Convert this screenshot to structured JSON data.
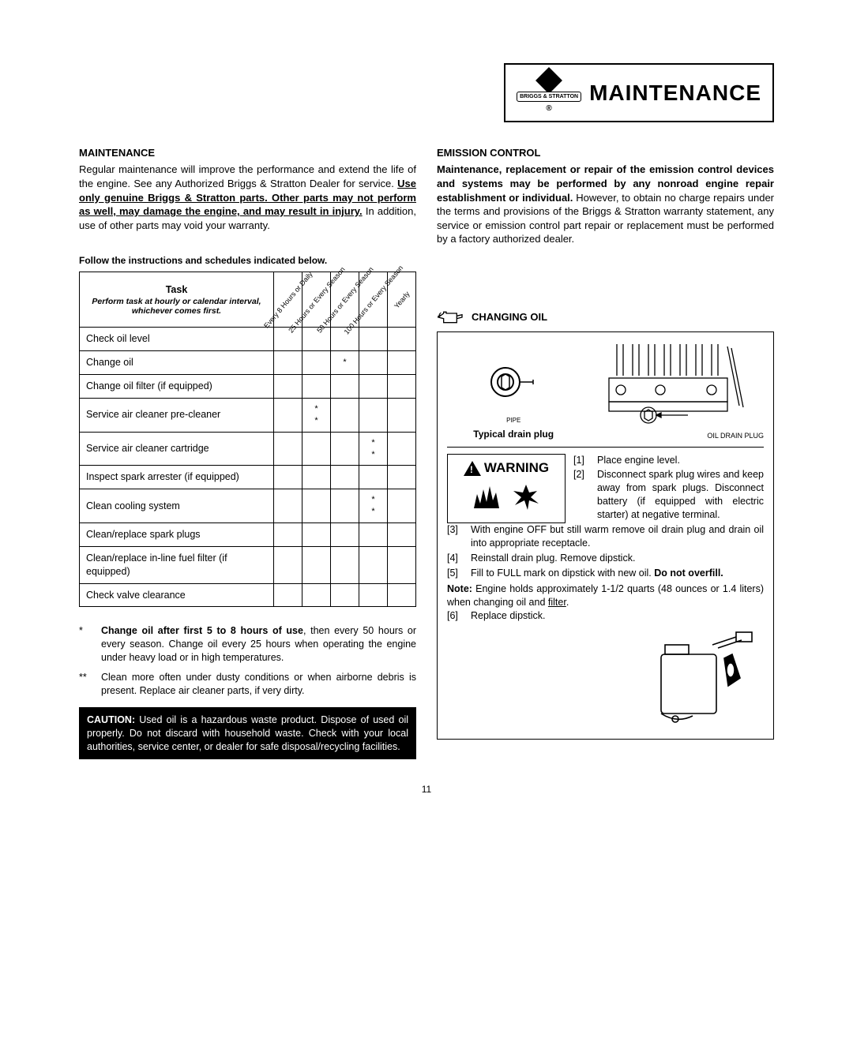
{
  "header": {
    "brand": "BRIGGS & STRATTON",
    "reg": "®",
    "title": "MAINTENANCE"
  },
  "left": {
    "maint_h": "MAINTENANCE",
    "maint_p1a": "Regular maintenance will improve the performance and extend the life of the engine. See any Authorized Briggs & Stratton Dealer for service. ",
    "maint_p1b": "Use only genuine Briggs & Stratton parts. Other parts may not perform as well, may damage the engine, and may result in injury.",
    "maint_p1c": " In addition, use of other parts may void your warranty.",
    "follow": "Follow the instructions and schedules indicated below.",
    "task_title": "Task",
    "task_sub": "Perform task at hourly or calendar interval, whichever comes first.",
    "cols": [
      "Every 8 Hours or Daily",
      "25 Hours or Every Season",
      "50 Hours or Every Season",
      "100 Hours or Every Season",
      "Yearly"
    ],
    "rows": [
      {
        "task": "Check oil level",
        "marks": [
          "",
          "",
          "",
          "",
          ""
        ]
      },
      {
        "task": "Change oil",
        "marks": [
          "",
          "",
          "*",
          "",
          ""
        ]
      },
      {
        "task": "Change oil filter (if equipped)",
        "marks": [
          "",
          "",
          "",
          "",
          ""
        ]
      },
      {
        "task": "Service air cleaner pre-cleaner",
        "marks": [
          "",
          "* *",
          "",
          "",
          ""
        ]
      },
      {
        "task": "Service air cleaner cartridge",
        "marks": [
          "",
          "",
          "",
          "* *",
          ""
        ]
      },
      {
        "task": "Inspect spark arrester (if equipped)",
        "marks": [
          "",
          "",
          "",
          "",
          ""
        ]
      },
      {
        "task": "Clean cooling system",
        "marks": [
          "",
          "",
          "",
          "* *",
          ""
        ]
      },
      {
        "task": "Clean/replace spark plugs",
        "marks": [
          "",
          "",
          "",
          "",
          ""
        ]
      },
      {
        "task": "Clean/replace in-line fuel filter (if equipped)",
        "marks": [
          "",
          "",
          "",
          "",
          ""
        ]
      },
      {
        "task": "Check valve clearance",
        "marks": [
          "",
          "",
          "",
          "",
          ""
        ]
      }
    ],
    "note1_sym": "*",
    "note1a": "Change oil after first 5 to 8 hours of use",
    "note1b": ", then every 50 hours or every season. Change oil every 25 hours when operating the engine under heavy load or in high temperatures.",
    "note2_sym": "**",
    "note2": "Clean more often under dusty conditions or when airborne debris is present. Replace air cleaner parts, if very dirty.",
    "caution_b": "CAUTION:",
    "caution": " Used oil is a hazardous waste product. Dispose of used oil properly. Do not discard with household waste. Check with your local authorities, service center, or dealer for safe disposal/recycling facilities."
  },
  "right": {
    "ec_h": "EMISSION CONTROL",
    "ec_bold": "Maintenance, replacement or repair of the emission control devices and systems may be performed by any nonroad engine repair establishment or individual.",
    "ec_rest": " However, to obtain no charge repairs under the terms and provisions of the Briggs & Stratton warranty statement, any service or emission control part repair or replacement must be performed by a factory authorized dealer.",
    "oil_h": "CHANGING OIL",
    "pipe": "PIPE",
    "typical": "Typical drain plug",
    "drain_lbl": "OIL DRAIN PLUG",
    "warn": "WARNING",
    "steps12": [
      {
        "n": "[1]",
        "t": "Place engine level."
      },
      {
        "n": "[2]",
        "t": "Disconnect spark plug wires and keep away from spark plugs. Disconnect battery (if equipped with electric starter) at negative terminal."
      }
    ],
    "steps_after": [
      {
        "n": "[3]",
        "t": "With engine OFF but still warm remove oil drain plug and drain oil into appropriate receptacle."
      },
      {
        "n": "[4]",
        "t": "Reinstall drain plug. Remove dipstick."
      },
      {
        "n": "[5]",
        "ta": "Fill to FULL mark on dipstick with new oil. ",
        "tb": "Do not overfill."
      }
    ],
    "note_b": "Note:",
    "note_t1": " Engine holds approximately 1-1/2 quarts (48 ounces or 1.4 liters) when changing oil and ",
    "note_u": "filter",
    "note_t2": ".",
    "step6n": "[6]",
    "step6t": "Replace dipstick."
  },
  "page": "11"
}
